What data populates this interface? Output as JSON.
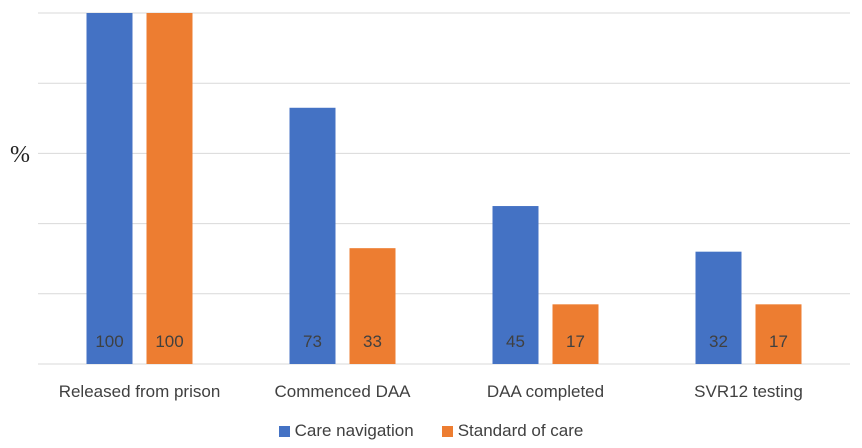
{
  "chart_data": {
    "type": "bar",
    "title": "",
    "xlabel": "",
    "ylabel": "%",
    "ylim": [
      0,
      100
    ],
    "grid": true,
    "legend_position": "bottom",
    "categories": [
      "Released from prison",
      "Commenced DAA",
      "DAA completed",
      "SVR12 testing"
    ],
    "series": [
      {
        "name": "Care navigation",
        "values": [
          100,
          73,
          45,
          32
        ],
        "color": "#4472C4"
      },
      {
        "name": "Standard of care",
        "values": [
          100,
          33,
          17,
          17
        ],
        "color": "#ED7D31"
      }
    ],
    "show_value_labels": true
  }
}
